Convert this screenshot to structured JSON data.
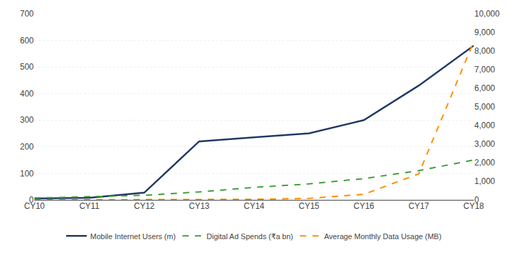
{
  "chart_data": {
    "type": "line",
    "categories": [
      "CY10",
      "CY11",
      "CY12",
      "CY13",
      "CY14",
      "CY15",
      "CY16",
      "CY17",
      "CY18"
    ],
    "series": [
      {
        "name": "Mobile Internet Users (m)",
        "color": "#1F3864",
        "line_style": "solid",
        "values": [
          5,
          8,
          27,
          220,
          235,
          250,
          300,
          430,
          580
        ]
      },
      {
        "name": "Digital Ad Spends (₹a bn)",
        "color": "#3CA036",
        "line_style": "dashed",
        "values": [
          7,
          12,
          17,
          30,
          47,
          60,
          80,
          110,
          150
        ]
      },
      {
        "name": "Average Monthly Data Usage (MB)",
        "color": "#FF8C00",
        "line_style": "dashed",
        "axis": "y2",
        "values": [
          0,
          2,
          5,
          10,
          30,
          80,
          300,
          1400,
          8500
        ]
      }
    ],
    "ylim": [
      0,
      700
    ],
    "yticks": [
      0,
      100,
      200,
      300,
      400,
      500,
      600,
      700
    ],
    "y2lim": [
      0,
      10000
    ],
    "y2ticks": [
      0,
      {
        "value": 1000,
        "label": "1,000"
      },
      {
        "value": 2000,
        "label": "2,000"
      },
      {
        "value": 3000,
        "label": "3,000"
      },
      {
        "value": 4000,
        "label": "4,000"
      },
      {
        "value": 5000,
        "label": "5,000"
      },
      {
        "value": 6000,
        "label": "6,000"
      },
      {
        "value": 7000,
        "label": "7,000"
      },
      {
        "value": 8000,
        "label": "8,000"
      },
      {
        "value": 9000,
        "label": "9,000"
      },
      {
        "value": 10000,
        "label": "10,000"
      }
    ],
    "grid": true,
    "legend": "bottom"
  }
}
